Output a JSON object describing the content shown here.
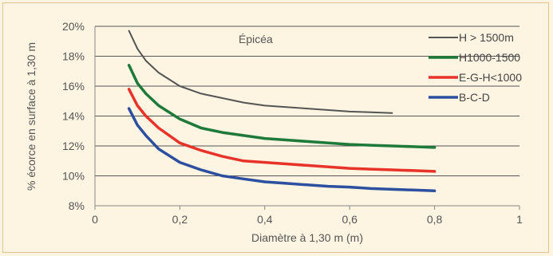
{
  "chart_data": {
    "type": "line",
    "ylabel": "% écorce en surface à 1,30 m",
    "xlabel": "Diamètre à 1,30 m (m)",
    "annotation": "Épicéa",
    "xlim": [
      0,
      1
    ],
    "ylim": [
      8,
      20
    ],
    "x_ticks": [
      0,
      0.2,
      0.4,
      0.6,
      0.8,
      1
    ],
    "x_tick_labels": [
      "0",
      "0,2",
      "0,4",
      "0,6",
      "0,8",
      "1"
    ],
    "y_ticks": [
      8,
      10,
      12,
      14,
      16,
      18,
      20
    ],
    "y_tick_labels": [
      "8%",
      "10%",
      "12%",
      "14%",
      "16%",
      "18%",
      "20%"
    ],
    "grid": "horizontal",
    "legend_position": "top-right",
    "series": [
      {
        "name": "H > 1500m",
        "color": "#555555",
        "x": [
          0.08,
          0.1,
          0.12,
          0.15,
          0.2,
          0.25,
          0.3,
          0.35,
          0.4,
          0.45,
          0.5,
          0.55,
          0.6,
          0.65,
          0.7
        ],
        "y": [
          19.7,
          18.5,
          17.7,
          16.9,
          16.0,
          15.5,
          15.2,
          14.9,
          14.7,
          14.6,
          14.5,
          14.4,
          14.3,
          14.25,
          14.2
        ]
      },
      {
        "name": "H1000-1500",
        "color": "#1e7a3a",
        "x": [
          0.08,
          0.1,
          0.12,
          0.15,
          0.2,
          0.25,
          0.3,
          0.35,
          0.4,
          0.45,
          0.5,
          0.55,
          0.6,
          0.65,
          0.7,
          0.75,
          0.8
        ],
        "y": [
          17.4,
          16.2,
          15.5,
          14.7,
          13.8,
          13.2,
          12.9,
          12.7,
          12.5,
          12.4,
          12.3,
          12.2,
          12.1,
          12.05,
          12.0,
          11.95,
          11.9
        ]
      },
      {
        "name": "E-G-H<1000",
        "color": "#e8332a",
        "x": [
          0.08,
          0.1,
          0.12,
          0.15,
          0.2,
          0.25,
          0.3,
          0.35,
          0.4,
          0.45,
          0.5,
          0.55,
          0.6,
          0.65,
          0.7,
          0.75,
          0.8
        ],
        "y": [
          15.8,
          14.7,
          14.0,
          13.2,
          12.2,
          11.7,
          11.3,
          11.0,
          10.9,
          10.8,
          10.7,
          10.6,
          10.5,
          10.45,
          10.4,
          10.35,
          10.3
        ]
      },
      {
        "name": "B-C-D",
        "color": "#2c4fa0",
        "x": [
          0.08,
          0.1,
          0.12,
          0.15,
          0.2,
          0.25,
          0.3,
          0.35,
          0.4,
          0.45,
          0.5,
          0.55,
          0.6,
          0.65,
          0.7,
          0.75,
          0.8
        ],
        "y": [
          14.5,
          13.4,
          12.7,
          11.8,
          10.9,
          10.4,
          10.0,
          9.8,
          9.6,
          9.5,
          9.4,
          9.3,
          9.25,
          9.15,
          9.1,
          9.05,
          9.0
        ]
      }
    ]
  }
}
